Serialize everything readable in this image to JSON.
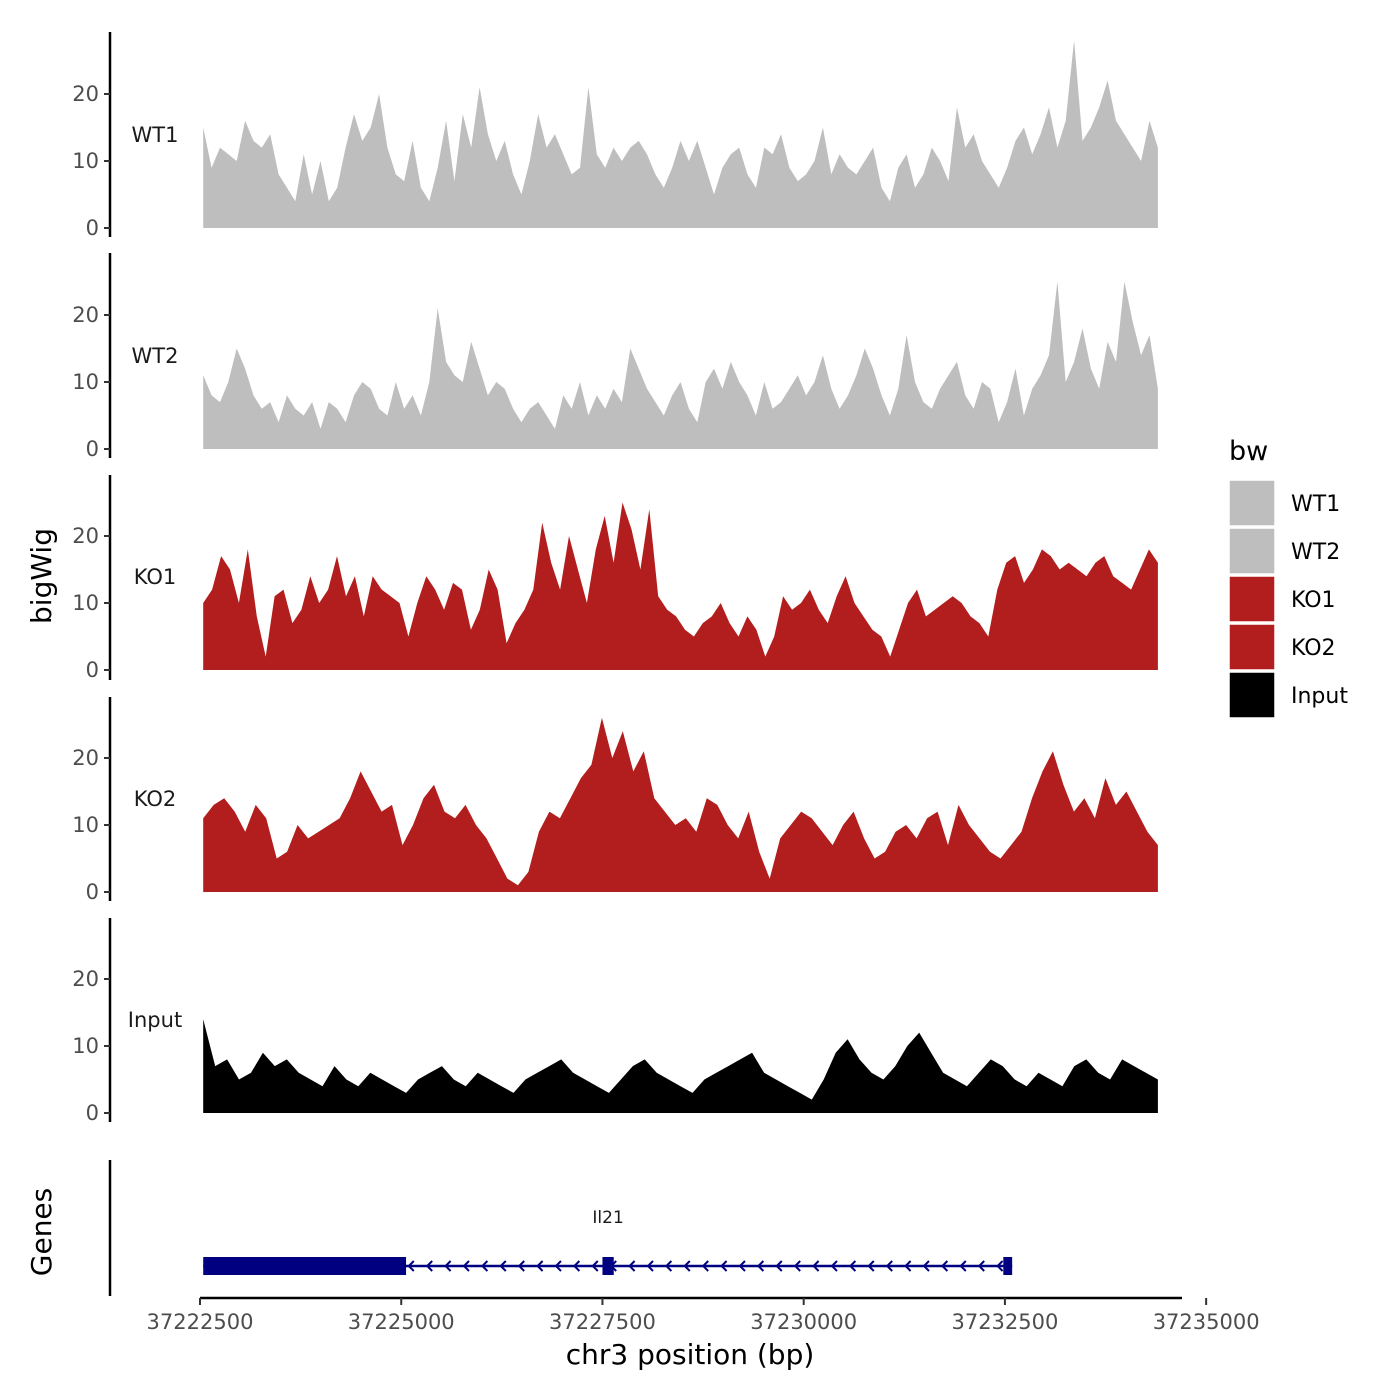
{
  "chart_data": {
    "type": "area",
    "ylabel": "bigWig",
    "xlabel": "chr3 position (bp)",
    "xlim": [
      37222500,
      37234700
    ],
    "ylim": [
      0,
      28
    ],
    "y_ticks": [
      "0",
      "10",
      "20"
    ],
    "x_ticks": [
      "37222500",
      "37225000",
      "37227500",
      "37230000",
      "37232500",
      "37235000"
    ],
    "region": [
      37222540,
      37234400
    ],
    "legend": {
      "title": "bw",
      "entries": [
        {
          "name": "WT1",
          "color": "#bebebe"
        },
        {
          "name": "WT2",
          "color": "#bebebe"
        },
        {
          "name": "KO1",
          "color": "#b21e1e"
        },
        {
          "name": "KO2",
          "color": "#b21e1e"
        },
        {
          "name": "Input",
          "color": "#000000"
        }
      ]
    },
    "series": [
      {
        "name": "WT1",
        "color": "#bebebe",
        "values": [
          15,
          9,
          12,
          11,
          10,
          16,
          13,
          12,
          14,
          8,
          6,
          4,
          11,
          5,
          10,
          4,
          6,
          12,
          17,
          13,
          15,
          20,
          12,
          8,
          7,
          13,
          6,
          4,
          9,
          16,
          7,
          17,
          12,
          21,
          14,
          10,
          13,
          8,
          5,
          10,
          17,
          12,
          14,
          11,
          8,
          9,
          21,
          11,
          9,
          12,
          10,
          12,
          13,
          11,
          8,
          6,
          9,
          13,
          10,
          13,
          9,
          5,
          9,
          11,
          12,
          8,
          6,
          12,
          11,
          14,
          9,
          7,
          8,
          10,
          15,
          8,
          11,
          9,
          8,
          10,
          12,
          6,
          4,
          9,
          11,
          6,
          8,
          12,
          10,
          7,
          18,
          12,
          14,
          10,
          8,
          6,
          9,
          13,
          15,
          11,
          14,
          18,
          12,
          16,
          28,
          13,
          15,
          18,
          22,
          16,
          14,
          12,
          10,
          16,
          12
        ]
      },
      {
        "name": "WT2",
        "color": "#bebebe",
        "values": [
          11,
          8,
          7,
          10,
          15,
          12,
          8,
          6,
          7,
          4,
          8,
          6,
          5,
          7,
          3,
          7,
          6,
          4,
          8,
          10,
          9,
          6,
          5,
          10,
          6,
          8,
          5,
          10,
          21,
          13,
          11,
          10,
          16,
          12,
          8,
          10,
          9,
          6,
          4,
          6,
          7,
          5,
          3,
          8,
          6,
          10,
          5,
          8,
          6,
          9,
          7,
          15,
          12,
          9,
          7,
          5,
          8,
          10,
          6,
          4,
          10,
          12,
          9,
          13,
          10,
          8,
          5,
          10,
          6,
          7,
          9,
          11,
          8,
          10,
          14,
          9,
          6,
          8,
          11,
          15,
          12,
          8,
          5,
          9,
          17,
          10,
          7,
          6,
          9,
          11,
          13,
          8,
          6,
          10,
          9,
          4,
          7,
          12,
          5,
          9,
          11,
          14,
          25,
          10,
          13,
          18,
          12,
          9,
          16,
          13,
          25,
          19,
          14,
          17,
          9
        ]
      },
      {
        "name": "KO1",
        "color": "#b21e1e",
        "values": [
          10,
          12,
          17,
          15,
          10,
          18,
          8,
          2,
          11,
          12,
          7,
          9,
          14,
          10,
          12,
          17,
          11,
          14,
          8,
          14,
          12,
          11,
          10,
          5,
          10,
          14,
          12,
          9,
          13,
          12,
          6,
          9,
          15,
          12,
          4,
          7,
          9,
          12,
          22,
          16,
          12,
          20,
          15,
          10,
          18,
          23,
          16,
          25,
          21,
          15,
          24,
          11,
          9,
          8,
          6,
          5,
          7,
          8,
          10,
          7,
          5,
          8,
          6,
          2,
          5,
          11,
          9,
          10,
          12,
          9,
          7,
          11,
          14,
          10,
          8,
          6,
          5,
          2,
          6,
          10,
          12,
          8,
          9,
          10,
          11,
          10,
          8,
          7,
          5,
          12,
          16,
          17,
          13,
          15,
          18,
          17,
          15,
          16,
          15,
          14,
          16,
          17,
          14,
          13,
          12,
          15,
          18,
          16
        ]
      },
      {
        "name": "KO2",
        "color": "#b21e1e",
        "values": [
          11,
          13,
          14,
          12,
          9,
          13,
          11,
          5,
          6,
          10,
          8,
          9,
          10,
          11,
          14,
          18,
          15,
          12,
          13,
          7,
          10,
          14,
          16,
          12,
          11,
          13,
          10,
          8,
          5,
          2,
          1,
          3,
          9,
          12,
          11,
          14,
          17,
          19,
          26,
          20,
          24,
          18,
          21,
          14,
          12,
          10,
          11,
          9,
          14,
          13,
          10,
          8,
          12,
          6,
          2,
          8,
          10,
          12,
          11,
          9,
          7,
          10,
          12,
          8,
          5,
          6,
          9,
          10,
          8,
          11,
          12,
          7,
          13,
          10,
          8,
          6,
          5,
          7,
          9,
          14,
          18,
          21,
          16,
          12,
          14,
          11,
          17,
          13,
          15,
          12,
          9,
          7
        ]
      },
      {
        "name": "Input",
        "color": "#000000",
        "values": [
          14,
          7,
          8,
          5,
          6,
          9,
          7,
          8,
          6,
          5,
          4,
          7,
          5,
          4,
          6,
          5,
          4,
          3,
          5,
          6,
          7,
          5,
          4,
          6,
          5,
          4,
          3,
          5,
          6,
          7,
          8,
          6,
          5,
          4,
          3,
          5,
          7,
          8,
          6,
          5,
          4,
          3,
          5,
          6,
          7,
          8,
          9,
          6,
          5,
          4,
          3,
          2,
          5,
          9,
          11,
          8,
          6,
          5,
          7,
          10,
          12,
          9,
          6,
          5,
          4,
          6,
          8,
          7,
          5,
          4,
          6,
          5,
          4,
          7,
          8,
          6,
          5,
          8,
          7,
          6,
          5
        ]
      }
    ],
    "genes": [
      {
        "name": "Il21",
        "color": "#000080",
        "strand": "-",
        "tx_start": 37222540,
        "tx_end": 37232590,
        "exons": [
          [
            37222540,
            37225060
          ],
          [
            37227500,
            37227640
          ],
          [
            37232480,
            37232590
          ]
        ]
      }
    ],
    "genes_track_label": "Genes"
  }
}
